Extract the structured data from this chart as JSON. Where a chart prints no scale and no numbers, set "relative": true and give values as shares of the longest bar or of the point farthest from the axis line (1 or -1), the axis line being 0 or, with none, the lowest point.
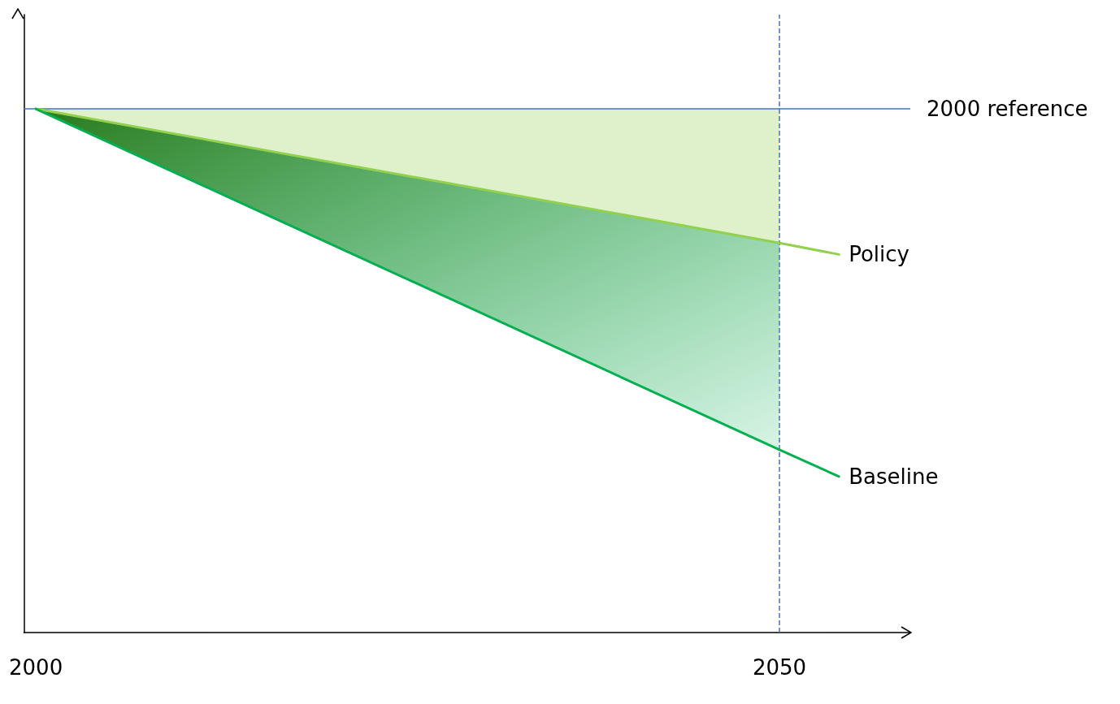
{
  "chart_data": {
    "type": "line",
    "relative": true,
    "x": [
      2000,
      2050,
      2054
    ],
    "xlim": [
      1999.2,
      2058.8
    ],
    "xticks": [
      2000,
      2050
    ],
    "tick_labels": "x",
    "grid": false,
    "legend": false,
    "marker": "none",
    "series": [
      {
        "name": "Policy",
        "color": "#92d050",
        "values": [
          1,
          0.744,
          0.722
        ],
        "upper": [
          1,
          1,
          null
        ],
        "lower": [
          1,
          0.744,
          null
        ]
      },
      {
        "name": "Baseline",
        "color": "#00b050",
        "values": [
          1,
          0.349,
          0.298
        ],
        "upper": [
          1,
          0.744,
          null
        ],
        "lower": [
          1,
          0.349,
          null
        ]
      }
    ],
    "ref_lines": [
      {
        "axis": "y",
        "value": 1,
        "label": "2000 reference",
        "color": "#4472c4"
      },
      {
        "axis": "x",
        "value": 2050,
        "color": "#4472c4",
        "line_style": "dashed"
      }
    ]
  }
}
